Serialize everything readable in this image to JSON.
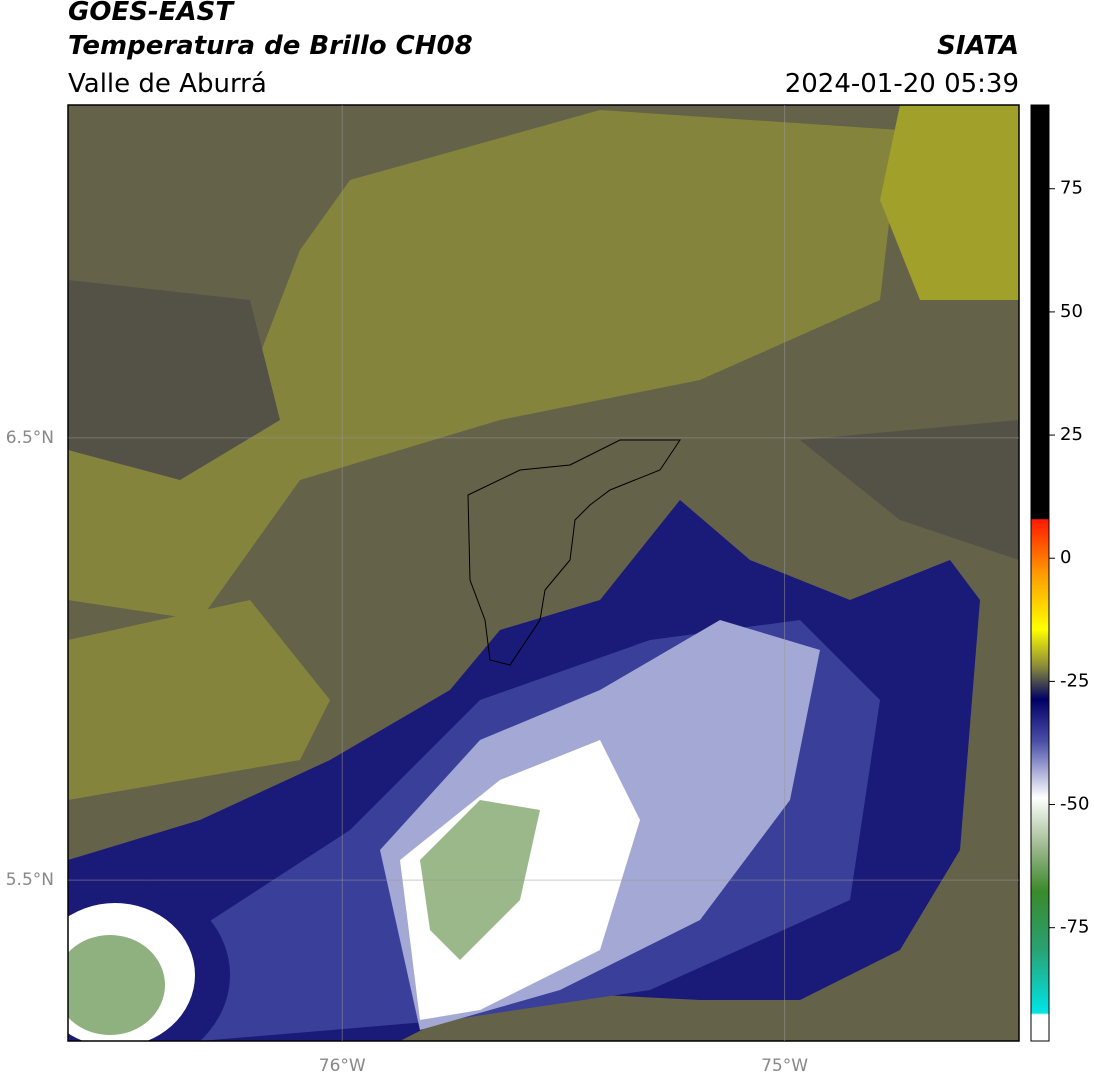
{
  "header": {
    "title": "GOES-EAST",
    "subtitle": "Temperatura de Brillo CH08",
    "region": "Valle de Aburrá",
    "source": "SIATA",
    "datetime": "2024-01-20 05:39"
  },
  "map": {
    "xlim": [
      -76.62,
      -74.47
    ],
    "ylim": [
      5.136,
      7.253
    ],
    "xticks": [
      {
        "value": -76,
        "label": "76°W"
      },
      {
        "value": -75,
        "label": "75°W"
      }
    ],
    "yticks": [
      {
        "value": 6.5,
        "label": "6.5°N"
      },
      {
        "value": 5.5,
        "label": "5.5°N"
      }
    ],
    "grid": true
  },
  "colorbar": {
    "lim": [
      -98,
      92
    ],
    "ticks": [
      75,
      50,
      25,
      0,
      -25,
      -50,
      -75
    ]
  }
}
